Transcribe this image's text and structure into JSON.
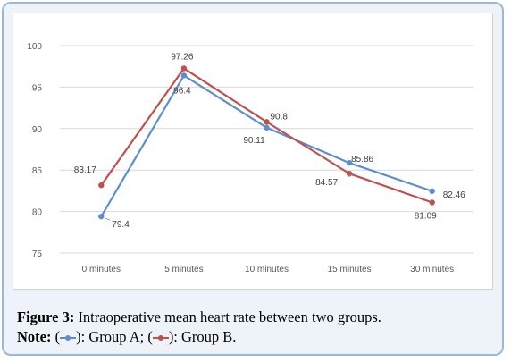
{
  "chart_data": {
    "type": "line",
    "categories": [
      "0 minutes",
      "5 minutes",
      "10 minutes",
      "15 minutes",
      "30 minutes"
    ],
    "ylim": [
      75,
      100
    ],
    "yticks": [
      75,
      80,
      85,
      90,
      95,
      100
    ],
    "grid": true,
    "series": [
      {
        "name": "Group A",
        "color": "#5b8fcf",
        "values": [
          79.4,
          96.4,
          90.11,
          85.86,
          82.46
        ],
        "labels": [
          "79.4",
          "96.4",
          "90.11",
          "85.86",
          "82.46"
        ]
      },
      {
        "name": "Group B",
        "color": "#c0504d",
        "values": [
          83.17,
          97.26,
          90.8,
          84.57,
          81.09
        ],
        "labels": [
          "83.17",
          "97.26",
          "90.8",
          "84.57",
          "81.09"
        ]
      }
    ]
  },
  "caption": {
    "figure_label": "Figure 3:",
    "figure_text": " Intraoperative mean heart rate between two groups.",
    "note_label": "Note:",
    "note_open_a": " (",
    "note_mid_a": "): Group A; (",
    "note_end_b": "): Group B."
  }
}
